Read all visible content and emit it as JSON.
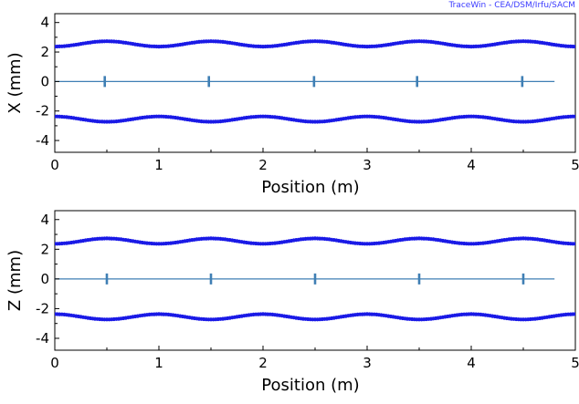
{
  "watermark": "TraceWin - CEA/DSM/Irfu/SACM",
  "colors": {
    "envelope": "#1a1ae6",
    "axis_line": "#3f7fb4",
    "frame": "#000000"
  },
  "chart_data": [
    {
      "type": "scatter",
      "xlabel": "Position (m)",
      "ylabel": "X (mm)",
      "xlim": [
        0,
        5
      ],
      "ylim": [
        -4.8,
        4.6
      ],
      "xticks": [
        "0",
        "1",
        "2",
        "3",
        "4",
        "5"
      ],
      "yticks": [
        "4",
        "2",
        "0",
        "-2",
        "-4"
      ],
      "grid": false,
      "envelope": {
        "mean": 2.55,
        "amplitude": 0.18,
        "period_m": 1.0,
        "max_at_m": 0.5,
        "x_range": [
          0,
          5
        ],
        "points_per_meter": 44
      },
      "reference_line": {
        "y": 0,
        "x_range": [
          0,
          4.8
        ]
      },
      "element_markers_x": [
        0.48,
        1.48,
        2.49,
        3.48,
        4.49
      ]
    },
    {
      "type": "scatter",
      "xlabel": "Position (m)",
      "ylabel": "Z (mm)",
      "xlim": [
        0,
        5
      ],
      "ylim": [
        -4.8,
        4.6
      ],
      "xticks": [
        "0",
        "1",
        "2",
        "3",
        "4",
        "5"
      ],
      "yticks": [
        "4",
        "2",
        "0",
        "-2",
        "-4"
      ],
      "grid": false,
      "envelope": {
        "mean": 2.55,
        "amplitude": 0.18,
        "period_m": 1.0,
        "max_at_m": 0.5,
        "x_range": [
          0,
          5
        ],
        "points_per_meter": 44
      },
      "reference_line": {
        "y": 0,
        "x_range": [
          0,
          4.8
        ]
      },
      "element_markers_x": [
        0.5,
        1.5,
        2.5,
        3.5,
        4.5
      ]
    }
  ]
}
